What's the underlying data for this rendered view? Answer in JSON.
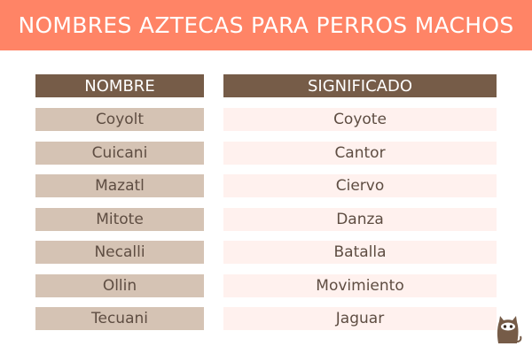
{
  "title": "NOMBRES AZTECAS PARA PERROS MACHOS",
  "table": {
    "headers": [
      "NOMBRE",
      "SIGNIFICADO"
    ],
    "rows": [
      [
        "Coyolt",
        "Coyote"
      ],
      [
        "Cuicani",
        "Cantor"
      ],
      [
        "Mazatl",
        "Ciervo"
      ],
      [
        "Mitote",
        "Danza"
      ],
      [
        "Necalli",
        "Batalla"
      ],
      [
        "Ollin",
        "Movimiento"
      ],
      [
        "Tecuani",
        "Jaguar"
      ]
    ]
  },
  "colors": {
    "banner": "#ff8466",
    "header": "#765c48",
    "name_cell": "#d5c3b4",
    "meaning_cell": "#fff1ee",
    "text": "#5e4d42"
  },
  "logo": {
    "icon": "cat-icon"
  }
}
